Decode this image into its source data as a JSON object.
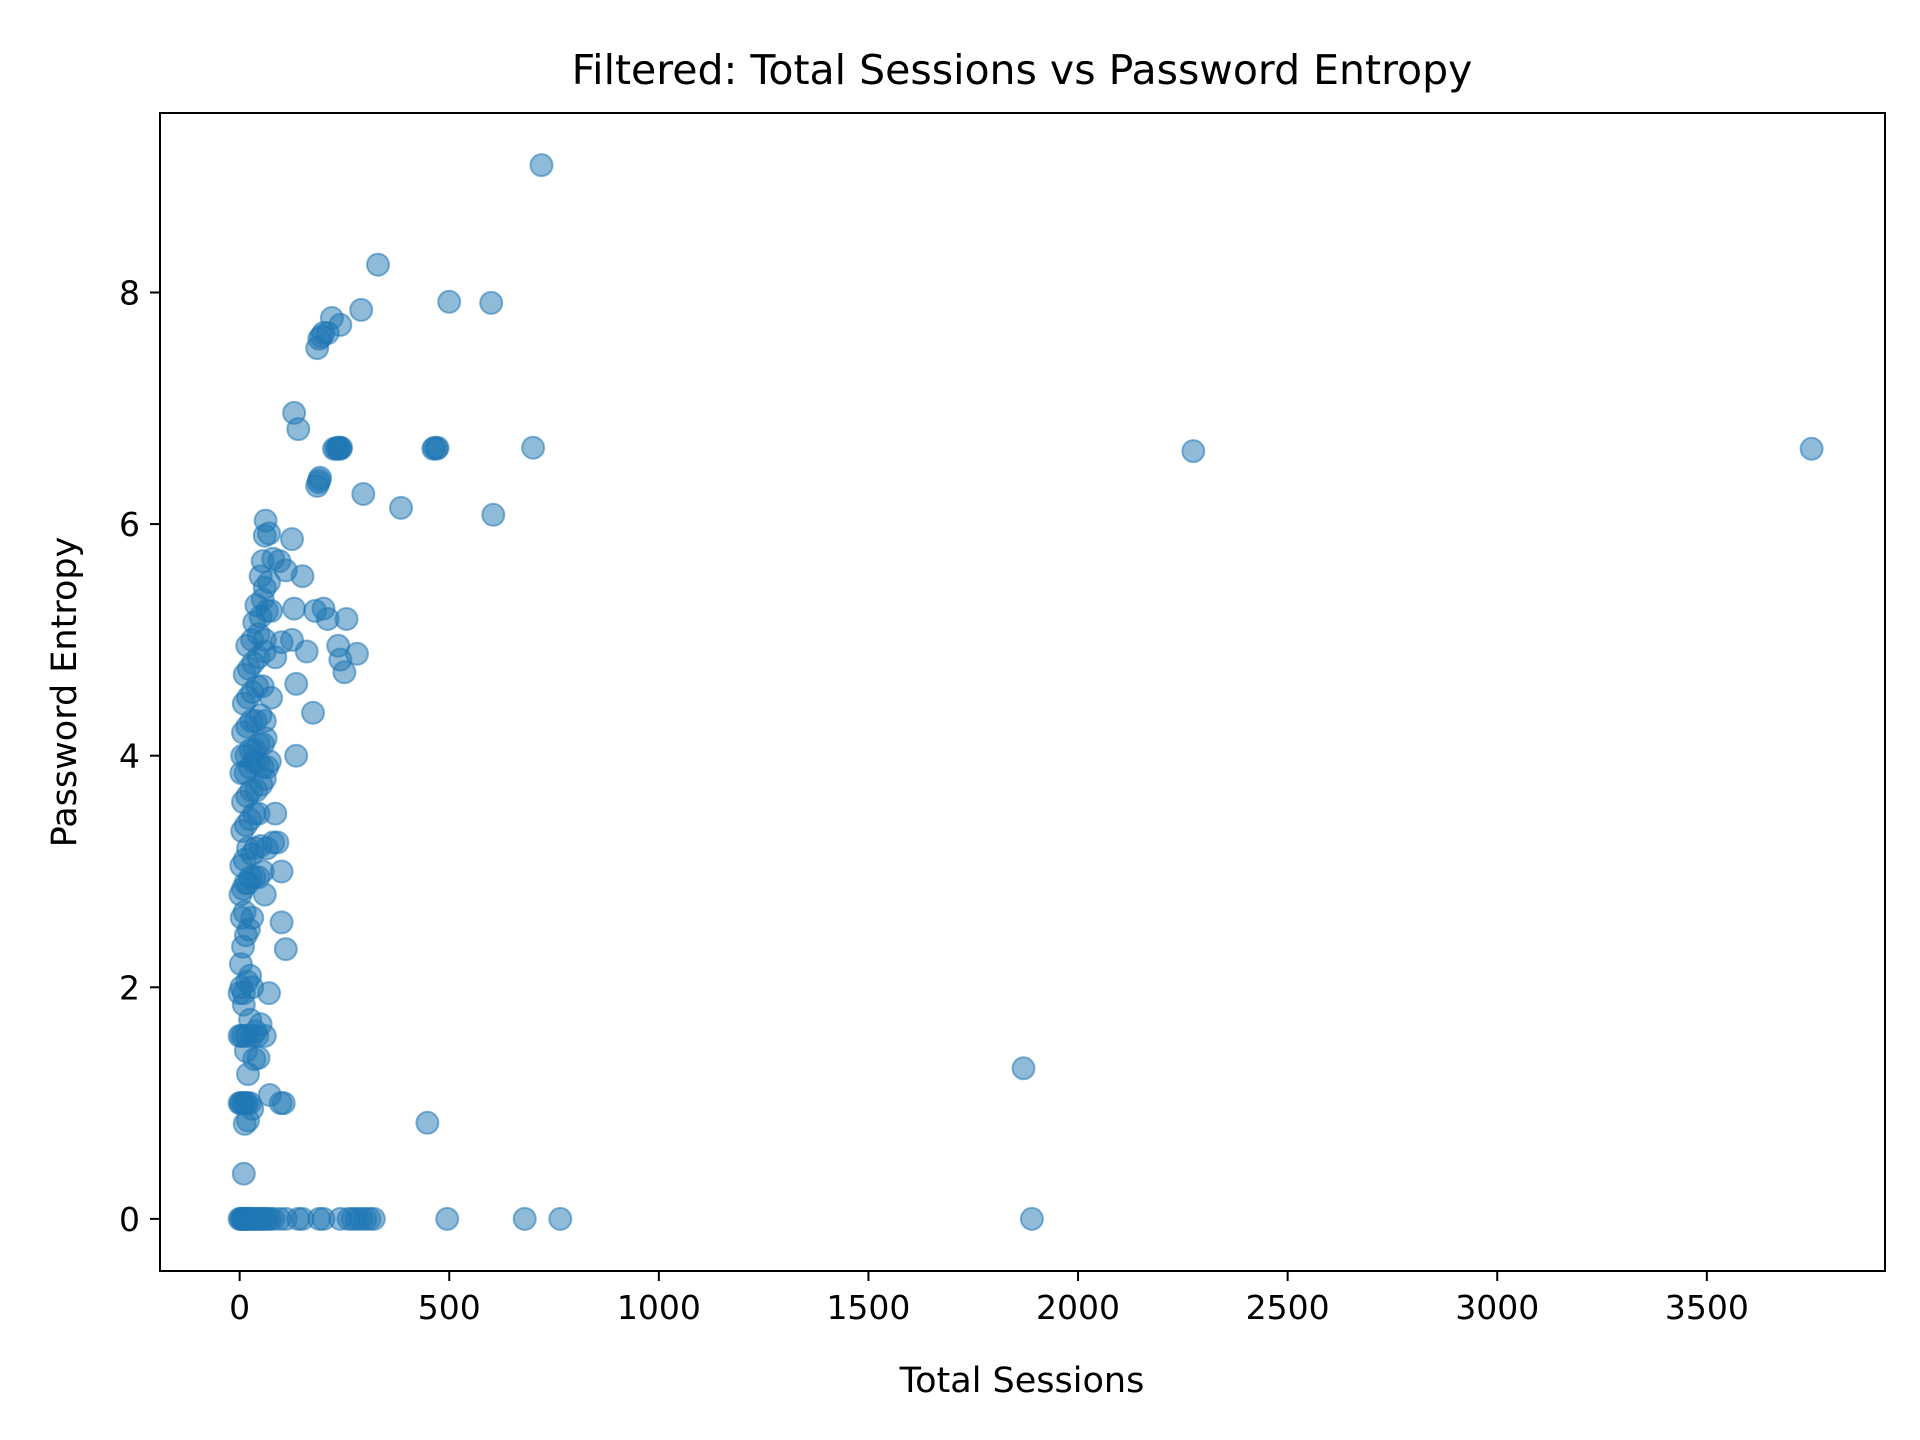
{
  "chart_data": {
    "type": "scatter",
    "title": "Filtered: Total Sessions vs Password Entropy",
    "xlabel": "Total Sessions",
    "ylabel": "Password Entropy",
    "xlim": [
      -190,
      3925
    ],
    "ylim": [
      -0.45,
      9.55
    ],
    "xticks": [
      0,
      500,
      1000,
      1500,
      2000,
      2500,
      3000,
      3500
    ],
    "yticks": [
      0,
      2,
      4,
      6,
      8
    ],
    "grid": false,
    "legend": "none",
    "marker_color": "#1f77b4",
    "marker_alpha": 0.5,
    "series": [
      {
        "points": [
          [
            0,
            0
          ],
          [
            3,
            0
          ],
          [
            6,
            0
          ],
          [
            8,
            0
          ],
          [
            10,
            0
          ],
          [
            12,
            0
          ],
          [
            15,
            0
          ],
          [
            18,
            0
          ],
          [
            22,
            0
          ],
          [
            26,
            0
          ],
          [
            30,
            0
          ],
          [
            35,
            0
          ],
          [
            40,
            0
          ],
          [
            45,
            0
          ],
          [
            50,
            0
          ],
          [
            55,
            0
          ],
          [
            60,
            0
          ],
          [
            66,
            0
          ],
          [
            72,
            0
          ],
          [
            80,
            0
          ],
          [
            95,
            0
          ],
          [
            110,
            0
          ],
          [
            140,
            0
          ],
          [
            150,
            0
          ],
          [
            190,
            0
          ],
          [
            200,
            0
          ],
          [
            240,
            0
          ],
          [
            260,
            0
          ],
          [
            270,
            0
          ],
          [
            280,
            0
          ],
          [
            290,
            0
          ],
          [
            300,
            0
          ],
          [
            310,
            0
          ],
          [
            320,
            0
          ],
          [
            495,
            0
          ],
          [
            680,
            0
          ],
          [
            765,
            0
          ],
          [
            1890,
            0
          ],
          [
            10,
            0.39
          ],
          [
            12,
            0.82
          ],
          [
            20,
            0.85
          ],
          [
            448,
            0.83
          ],
          [
            1870,
            1.3
          ],
          [
            0,
            1.0
          ],
          [
            3,
            1.0
          ],
          [
            6,
            1.0
          ],
          [
            10,
            1.0
          ],
          [
            14,
            1.0
          ],
          [
            18,
            1.0
          ],
          [
            25,
            1.0
          ],
          [
            30,
            0.95
          ],
          [
            98,
            1.0
          ],
          [
            105,
            1.0
          ],
          [
            72,
            1.07
          ],
          [
            20,
            1.25
          ],
          [
            35,
            1.38
          ],
          [
            45,
            1.39
          ],
          [
            0,
            1.58
          ],
          [
            5,
            1.58
          ],
          [
            10,
            1.58
          ],
          [
            18,
            1.58
          ],
          [
            30,
            1.58
          ],
          [
            42,
            1.58
          ],
          [
            60,
            1.58
          ],
          [
            15,
            1.45
          ],
          [
            25,
            1.72
          ],
          [
            38,
            1.62
          ],
          [
            50,
            1.68
          ],
          [
            10,
            1.85
          ],
          [
            0,
            1.95
          ],
          [
            4,
            2.0
          ],
          [
            10,
            1.95
          ],
          [
            18,
            2.05
          ],
          [
            25,
            2.1
          ],
          [
            30,
            2.0
          ],
          [
            70,
            1.95
          ],
          [
            3,
            2.2
          ],
          [
            8,
            2.35
          ],
          [
            15,
            2.45
          ],
          [
            22,
            2.5
          ],
          [
            30,
            2.6
          ],
          [
            5,
            2.6
          ],
          [
            12,
            2.65
          ],
          [
            110,
            2.33
          ],
          [
            100,
            2.56
          ],
          [
            2,
            2.8
          ],
          [
            8,
            2.85
          ],
          [
            14,
            2.9
          ],
          [
            20,
            2.9
          ],
          [
            26,
            2.95
          ],
          [
            35,
            2.95
          ],
          [
            45,
            2.95
          ],
          [
            55,
            3.0
          ],
          [
            60,
            2.8
          ],
          [
            100,
            3.0
          ],
          [
            4,
            3.05
          ],
          [
            12,
            3.1
          ],
          [
            20,
            3.2
          ],
          [
            30,
            3.15
          ],
          [
            38,
            3.2
          ],
          [
            50,
            3.22
          ],
          [
            65,
            3.2
          ],
          [
            80,
            3.25
          ],
          [
            90,
            3.25
          ],
          [
            6,
            3.35
          ],
          [
            15,
            3.4
          ],
          [
            25,
            3.45
          ],
          [
            35,
            3.5
          ],
          [
            45,
            3.5
          ],
          [
            85,
            3.5
          ],
          [
            8,
            3.6
          ],
          [
            18,
            3.65
          ],
          [
            28,
            3.7
          ],
          [
            40,
            3.7
          ],
          [
            52,
            3.75
          ],
          [
            60,
            3.8
          ],
          [
            4,
            3.85
          ],
          [
            14,
            3.85
          ],
          [
            24,
            3.9
          ],
          [
            34,
            3.95
          ],
          [
            44,
            3.95
          ],
          [
            55,
            3.9
          ],
          [
            66,
            3.9
          ],
          [
            72,
            3.95
          ],
          [
            6,
            4.0
          ],
          [
            16,
            4.0
          ],
          [
            26,
            4.05
          ],
          [
            36,
            4.05
          ],
          [
            46,
            4.1
          ],
          [
            56,
            4.1
          ],
          [
            62,
            4.15
          ],
          [
            135,
            4.0
          ],
          [
            8,
            4.2
          ],
          [
            18,
            4.25
          ],
          [
            28,
            4.3
          ],
          [
            38,
            4.3
          ],
          [
            50,
            4.35
          ],
          [
            60,
            4.3
          ],
          [
            10,
            4.45
          ],
          [
            20,
            4.5
          ],
          [
            30,
            4.55
          ],
          [
            42,
            4.6
          ],
          [
            55,
            4.6
          ],
          [
            75,
            4.5
          ],
          [
            12,
            4.7
          ],
          [
            22,
            4.75
          ],
          [
            32,
            4.8
          ],
          [
            45,
            4.85
          ],
          [
            60,
            4.9
          ],
          [
            85,
            4.85
          ],
          [
            18,
            4.95
          ],
          [
            30,
            5.0
          ],
          [
            45,
            5.05
          ],
          [
            60,
            5.0
          ],
          [
            100,
            4.98
          ],
          [
            125,
            5.0
          ],
          [
            160,
            4.9
          ],
          [
            135,
            4.62
          ],
          [
            175,
            4.37
          ],
          [
            250,
            4.72
          ],
          [
            240,
            4.83
          ],
          [
            235,
            4.95
          ],
          [
            280,
            4.88
          ],
          [
            35,
            5.15
          ],
          [
            50,
            5.2
          ],
          [
            65,
            5.25
          ],
          [
            75,
            5.25
          ],
          [
            180,
            5.25
          ],
          [
            200,
            5.27
          ],
          [
            210,
            5.18
          ],
          [
            255,
            5.18
          ],
          [
            130,
            5.27
          ],
          [
            40,
            5.3
          ],
          [
            55,
            5.35
          ],
          [
            60,
            5.45
          ],
          [
            70,
            5.5
          ],
          [
            50,
            5.55
          ],
          [
            150,
            5.55
          ],
          [
            55,
            5.68
          ],
          [
            80,
            5.7
          ],
          [
            95,
            5.68
          ],
          [
            110,
            5.6
          ],
          [
            60,
            5.9
          ],
          [
            70,
            5.92
          ],
          [
            125,
            5.87
          ],
          [
            62,
            6.03
          ],
          [
            295,
            6.26
          ],
          [
            385,
            6.14
          ],
          [
            605,
            6.08
          ],
          [
            185,
            6.33
          ],
          [
            190,
            6.38
          ],
          [
            192,
            6.4
          ],
          [
            188,
            6.36
          ],
          [
            225,
            6.65
          ],
          [
            230,
            6.65
          ],
          [
            233,
            6.66
          ],
          [
            236,
            6.65
          ],
          [
            238,
            6.66
          ],
          [
            240,
            6.65
          ],
          [
            242,
            6.66
          ],
          [
            462,
            6.65
          ],
          [
            465,
            6.66
          ],
          [
            470,
            6.65
          ],
          [
            472,
            6.66
          ],
          [
            700,
            6.66
          ],
          [
            2275,
            6.63
          ],
          [
            3750,
            6.65
          ],
          [
            130,
            6.96
          ],
          [
            140,
            6.82
          ],
          [
            185,
            7.52
          ],
          [
            190,
            7.6
          ],
          [
            195,
            7.62
          ],
          [
            200,
            7.65
          ],
          [
            210,
            7.65
          ],
          [
            220,
            7.78
          ],
          [
            240,
            7.72
          ],
          [
            290,
            7.85
          ],
          [
            500,
            7.92
          ],
          [
            600,
            7.91
          ],
          [
            330,
            8.24
          ],
          [
            720,
            9.1
          ]
        ]
      }
    ]
  }
}
